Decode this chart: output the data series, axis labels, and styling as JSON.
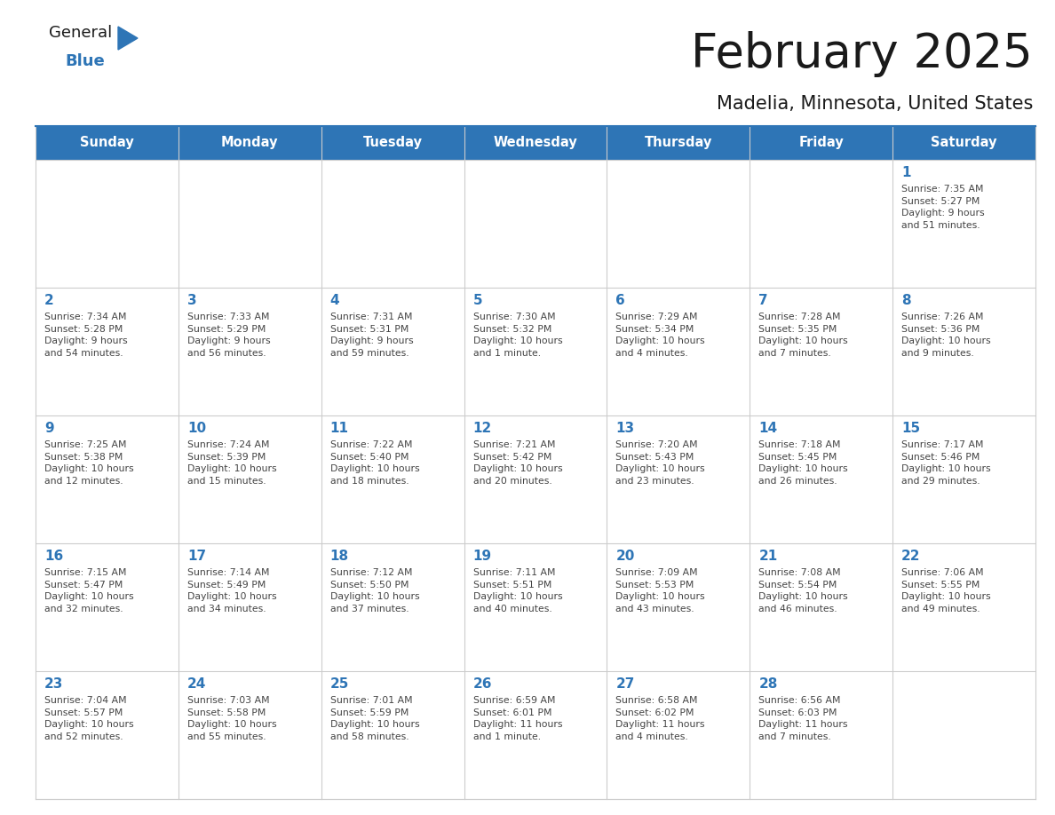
{
  "title": "February 2025",
  "subtitle": "Madelia, Minnesota, United States",
  "header_bg_color": "#2E75B6",
  "header_text_color": "#FFFFFF",
  "cell_bg_color": "#FFFFFF",
  "cell_border_color": "#CCCCCC",
  "day_number_color": "#2E75B6",
  "info_text_color": "#444444",
  "title_color": "#1a1a1a",
  "subtitle_color": "#1a1a1a",
  "days_of_week": [
    "Sunday",
    "Monday",
    "Tuesday",
    "Wednesday",
    "Thursday",
    "Friday",
    "Saturday"
  ],
  "weeks": [
    [
      {
        "day": null,
        "info": ""
      },
      {
        "day": null,
        "info": ""
      },
      {
        "day": null,
        "info": ""
      },
      {
        "day": null,
        "info": ""
      },
      {
        "day": null,
        "info": ""
      },
      {
        "day": null,
        "info": ""
      },
      {
        "day": 1,
        "info": "Sunrise: 7:35 AM\nSunset: 5:27 PM\nDaylight: 9 hours\nand 51 minutes."
      }
    ],
    [
      {
        "day": 2,
        "info": "Sunrise: 7:34 AM\nSunset: 5:28 PM\nDaylight: 9 hours\nand 54 minutes."
      },
      {
        "day": 3,
        "info": "Sunrise: 7:33 AM\nSunset: 5:29 PM\nDaylight: 9 hours\nand 56 minutes."
      },
      {
        "day": 4,
        "info": "Sunrise: 7:31 AM\nSunset: 5:31 PM\nDaylight: 9 hours\nand 59 minutes."
      },
      {
        "day": 5,
        "info": "Sunrise: 7:30 AM\nSunset: 5:32 PM\nDaylight: 10 hours\nand 1 minute."
      },
      {
        "day": 6,
        "info": "Sunrise: 7:29 AM\nSunset: 5:34 PM\nDaylight: 10 hours\nand 4 minutes."
      },
      {
        "day": 7,
        "info": "Sunrise: 7:28 AM\nSunset: 5:35 PM\nDaylight: 10 hours\nand 7 minutes."
      },
      {
        "day": 8,
        "info": "Sunrise: 7:26 AM\nSunset: 5:36 PM\nDaylight: 10 hours\nand 9 minutes."
      }
    ],
    [
      {
        "day": 9,
        "info": "Sunrise: 7:25 AM\nSunset: 5:38 PM\nDaylight: 10 hours\nand 12 minutes."
      },
      {
        "day": 10,
        "info": "Sunrise: 7:24 AM\nSunset: 5:39 PM\nDaylight: 10 hours\nand 15 minutes."
      },
      {
        "day": 11,
        "info": "Sunrise: 7:22 AM\nSunset: 5:40 PM\nDaylight: 10 hours\nand 18 minutes."
      },
      {
        "day": 12,
        "info": "Sunrise: 7:21 AM\nSunset: 5:42 PM\nDaylight: 10 hours\nand 20 minutes."
      },
      {
        "day": 13,
        "info": "Sunrise: 7:20 AM\nSunset: 5:43 PM\nDaylight: 10 hours\nand 23 minutes."
      },
      {
        "day": 14,
        "info": "Sunrise: 7:18 AM\nSunset: 5:45 PM\nDaylight: 10 hours\nand 26 minutes."
      },
      {
        "day": 15,
        "info": "Sunrise: 7:17 AM\nSunset: 5:46 PM\nDaylight: 10 hours\nand 29 minutes."
      }
    ],
    [
      {
        "day": 16,
        "info": "Sunrise: 7:15 AM\nSunset: 5:47 PM\nDaylight: 10 hours\nand 32 minutes."
      },
      {
        "day": 17,
        "info": "Sunrise: 7:14 AM\nSunset: 5:49 PM\nDaylight: 10 hours\nand 34 minutes."
      },
      {
        "day": 18,
        "info": "Sunrise: 7:12 AM\nSunset: 5:50 PM\nDaylight: 10 hours\nand 37 minutes."
      },
      {
        "day": 19,
        "info": "Sunrise: 7:11 AM\nSunset: 5:51 PM\nDaylight: 10 hours\nand 40 minutes."
      },
      {
        "day": 20,
        "info": "Sunrise: 7:09 AM\nSunset: 5:53 PM\nDaylight: 10 hours\nand 43 minutes."
      },
      {
        "day": 21,
        "info": "Sunrise: 7:08 AM\nSunset: 5:54 PM\nDaylight: 10 hours\nand 46 minutes."
      },
      {
        "day": 22,
        "info": "Sunrise: 7:06 AM\nSunset: 5:55 PM\nDaylight: 10 hours\nand 49 minutes."
      }
    ],
    [
      {
        "day": 23,
        "info": "Sunrise: 7:04 AM\nSunset: 5:57 PM\nDaylight: 10 hours\nand 52 minutes."
      },
      {
        "day": 24,
        "info": "Sunrise: 7:03 AM\nSunset: 5:58 PM\nDaylight: 10 hours\nand 55 minutes."
      },
      {
        "day": 25,
        "info": "Sunrise: 7:01 AM\nSunset: 5:59 PM\nDaylight: 10 hours\nand 58 minutes."
      },
      {
        "day": 26,
        "info": "Sunrise: 6:59 AM\nSunset: 6:01 PM\nDaylight: 11 hours\nand 1 minute."
      },
      {
        "day": 27,
        "info": "Sunrise: 6:58 AM\nSunset: 6:02 PM\nDaylight: 11 hours\nand 4 minutes."
      },
      {
        "day": 28,
        "info": "Sunrise: 6:56 AM\nSunset: 6:03 PM\nDaylight: 11 hours\nand 7 minutes."
      },
      {
        "day": null,
        "info": ""
      }
    ]
  ],
  "logo_text_general": "General",
  "logo_text_blue": "Blue",
  "logo_color_general": "#1a1a1a",
  "logo_color_blue": "#2E75B6",
  "logo_triangle_color": "#2E75B6",
  "fig_width": 11.88,
  "fig_height": 9.18,
  "dpi": 100
}
